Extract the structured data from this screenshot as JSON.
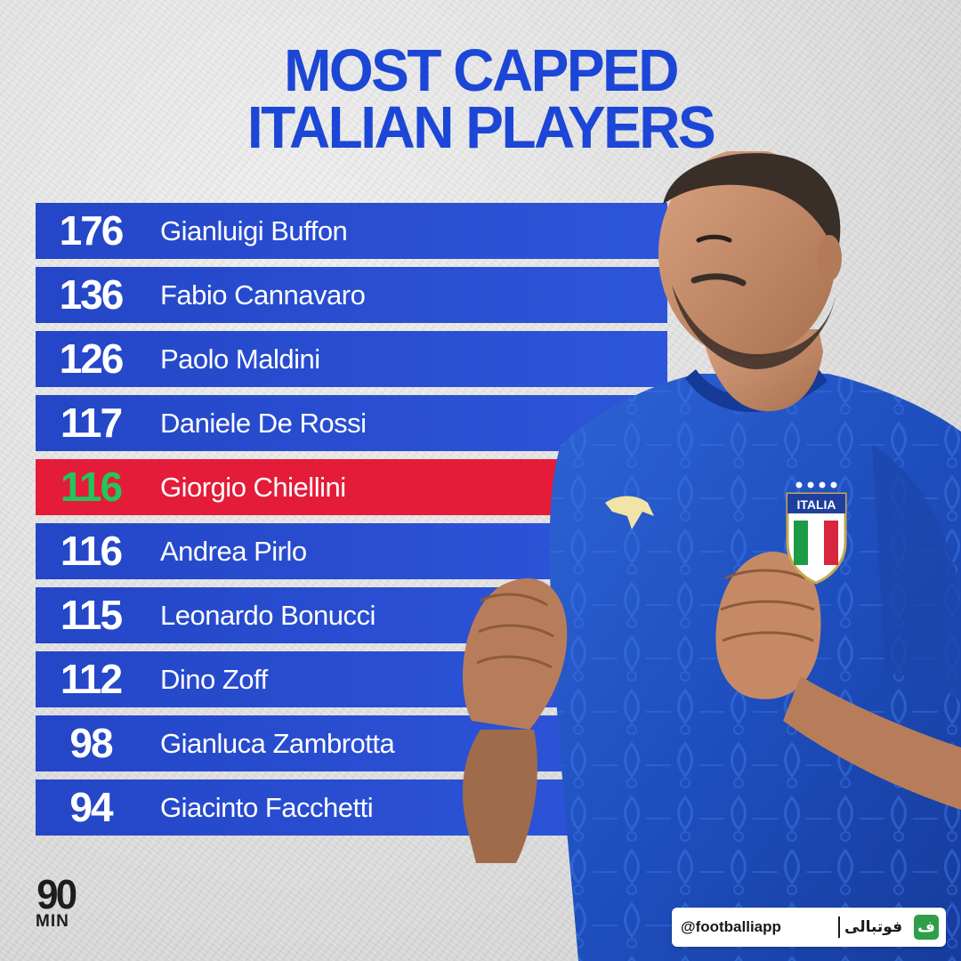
{
  "title": {
    "line1": "MOST CAPPED",
    "line2": "ITALIAN PLAYERS"
  },
  "chart_data": {
    "type": "table",
    "title": "MOST CAPPED ITALIAN PLAYERS",
    "highlight": "Giorgio Chiellini",
    "rows": [
      {
        "caps": 176,
        "player": "Gianluigi Buffon"
      },
      {
        "caps": 136,
        "player": "Fabio Cannavaro"
      },
      {
        "caps": 126,
        "player": "Paolo Maldini"
      },
      {
        "caps": 117,
        "player": "Daniele De Rossi"
      },
      {
        "caps": 116,
        "player": "Giorgio Chiellini"
      },
      {
        "caps": 116,
        "player": "Andrea Pirlo"
      },
      {
        "caps": 115,
        "player": "Leonardo Bonucci"
      },
      {
        "caps": 112,
        "player": "Dino Zoff"
      },
      {
        "caps": 98,
        "player": "Gianluca Zambrotta"
      },
      {
        "caps": 94,
        "player": "Giacinto Facchetti"
      }
    ]
  },
  "colors": {
    "title": "#1c46d6",
    "bar": "#2446c7",
    "highlight_bar": "#e41c39",
    "highlight_value": "#22c65a",
    "text": "#ffffff"
  },
  "player_image": {
    "icon": "player-photo-illustration",
    "badge_text": "ITALIA"
  },
  "logo": {
    "line1": "90",
    "line2": "MIN"
  },
  "watermark": {
    "handle": "@footballiapp",
    "brand": "فوتبالی",
    "icon_glyph": "ف"
  }
}
